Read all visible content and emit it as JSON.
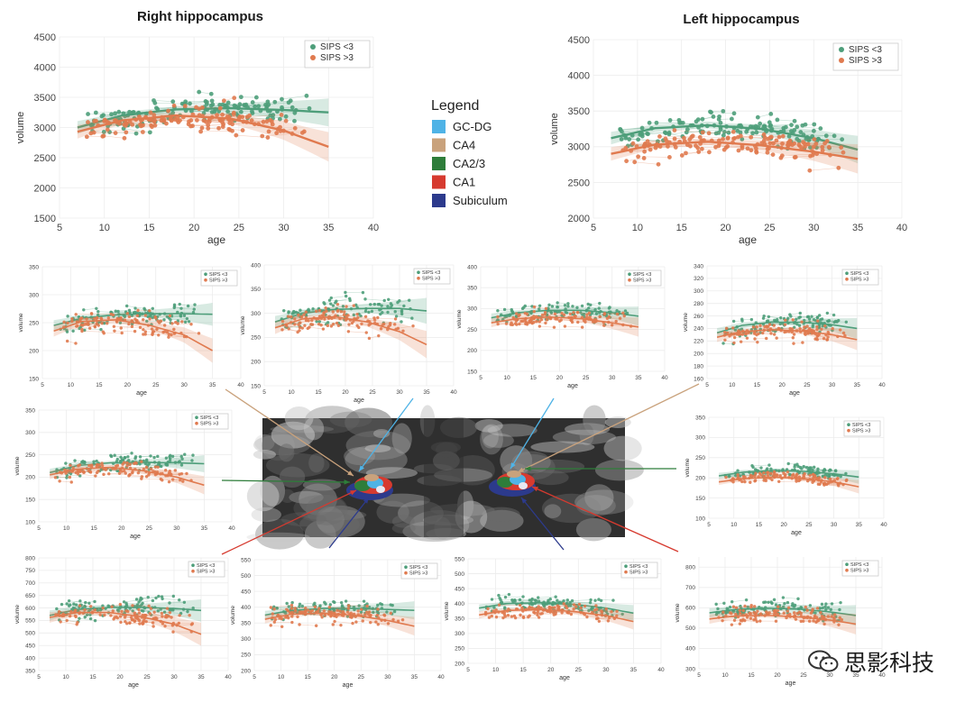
{
  "figure": {
    "watermark": "思影科技",
    "mri": {
      "palette": [
        "#2f2f2f",
        "#6a6a6a",
        "#9a9a9a",
        "#c8c8c8"
      ]
    },
    "legend": {
      "title": "Legend",
      "items": [
        {
          "label": "GC-DG",
          "color": "#4fb3e6"
        },
        {
          "label": "CA4",
          "color": "#c9a27c"
        },
        {
          "label": "CA2/3",
          "color": "#2e7d3a"
        },
        {
          "label": "CA1",
          "color": "#d63a2f"
        },
        {
          "label": "Subiculum",
          "color": "#2c3a8c"
        }
      ]
    },
    "series_colors": {
      "SIPS <3": "#4e9e7a",
      "SIPS >3": "#e07a4f"
    }
  },
  "chart_data": [
    {
      "id": "right-whole",
      "type": "scatter",
      "title": "Right hippocampus",
      "xlabel": "age",
      "ylabel": "volume",
      "xlim": [
        5,
        40
      ],
      "ylim": [
        1500,
        4500
      ],
      "xticks": [
        5,
        10,
        15,
        20,
        25,
        30,
        35,
        40
      ],
      "yticks": [
        1500,
        2000,
        2500,
        3000,
        3500,
        4000,
        4500
      ],
      "legend": "top-right",
      "series": [
        {
          "name": "SIPS <3",
          "fit_x": [
            7,
            12,
            18,
            24,
            30,
            35
          ],
          "fit_y": [
            3000,
            3200,
            3300,
            3320,
            3290,
            3250
          ],
          "center": 3200,
          "spread": 360
        },
        {
          "name": "SIPS >3",
          "fit_x": [
            7,
            12,
            18,
            24,
            30,
            35
          ],
          "fit_y": [
            2930,
            3120,
            3200,
            3150,
            2950,
            2680
          ],
          "center": 3100,
          "spread": 380
        }
      ]
    },
    {
      "id": "left-whole",
      "type": "scatter",
      "title": "Left hippocampus",
      "xlabel": "age",
      "ylabel": "volume",
      "xlim": [
        5,
        40
      ],
      "ylim": [
        2000,
        4500
      ],
      "xticks": [
        5,
        10,
        15,
        20,
        25,
        30,
        35,
        40
      ],
      "yticks": [
        2000,
        2500,
        3000,
        3500,
        4000,
        4500
      ],
      "legend": "top-right",
      "series": [
        {
          "name": "SIPS <3",
          "fit_x": [
            7,
            12,
            18,
            24,
            30,
            35
          ],
          "fit_y": [
            3120,
            3260,
            3300,
            3250,
            3120,
            2960
          ],
          "center": 3250,
          "spread": 300
        },
        {
          "name": "SIPS >3",
          "fit_x": [
            7,
            12,
            18,
            24,
            30,
            35
          ],
          "fit_y": [
            2900,
            3030,
            3070,
            3020,
            2930,
            2830
          ],
          "center": 3030,
          "spread": 320
        }
      ]
    },
    {
      "id": "r-ca4",
      "type": "scatter",
      "xlabel": "age",
      "ylabel": "volume",
      "xlim": [
        5,
        40
      ],
      "ylim": [
        150,
        350
      ],
      "xticks": [
        5,
        10,
        15,
        20,
        25,
        30,
        35,
        40
      ],
      "yticks": [
        150,
        200,
        250,
        300,
        350
      ],
      "legend": "top-right",
      "series": [
        {
          "name": "SIPS <3",
          "fit_x": [
            7,
            12,
            18,
            24,
            30,
            35
          ],
          "fit_y": [
            245,
            258,
            264,
            266,
            266,
            265
          ],
          "center": 258,
          "spread": 32
        },
        {
          "name": "SIPS >3",
          "fit_x": [
            7,
            12,
            18,
            24,
            30,
            35
          ],
          "fit_y": [
            235,
            252,
            255,
            245,
            228,
            200
          ],
          "center": 248,
          "spread": 34
        }
      ]
    },
    {
      "id": "r-gcdg",
      "type": "scatter",
      "xlabel": "age",
      "ylabel": "volume",
      "xlim": [
        5,
        40
      ],
      "ylim": [
        150,
        400
      ],
      "xticks": [
        5,
        10,
        15,
        20,
        25,
        30,
        35,
        40
      ],
      "yticks": [
        150,
        200,
        250,
        300,
        350,
        400
      ],
      "legend": "top-right",
      "series": [
        {
          "name": "SIPS <3",
          "fit_x": [
            7,
            12,
            18,
            24,
            30,
            35
          ],
          "fit_y": [
            282,
            300,
            308,
            310,
            310,
            305
          ],
          "center": 298,
          "spread": 42
        },
        {
          "name": "SIPS >3",
          "fit_x": [
            7,
            12,
            18,
            24,
            30,
            35
          ],
          "fit_y": [
            270,
            288,
            293,
            282,
            262,
            235
          ],
          "center": 283,
          "spread": 44
        }
      ]
    },
    {
      "id": "l-gcdg",
      "type": "scatter",
      "xlabel": "age",
      "ylabel": "volume",
      "xlim": [
        5,
        40
      ],
      "ylim": [
        150,
        400
      ],
      "xticks": [
        5,
        10,
        15,
        20,
        25,
        30,
        35,
        40
      ],
      "yticks": [
        150,
        200,
        250,
        300,
        350,
        400
      ],
      "legend": "top-right",
      "series": [
        {
          "name": "SIPS <3",
          "fit_x": [
            7,
            12,
            18,
            24,
            30,
            35
          ],
          "fit_y": [
            278,
            290,
            296,
            296,
            290,
            282
          ],
          "center": 290,
          "spread": 36
        },
        {
          "name": "SIPS >3",
          "fit_x": [
            7,
            12,
            18,
            24,
            30,
            35
          ],
          "fit_y": [
            266,
            276,
            280,
            276,
            266,
            256
          ],
          "center": 275,
          "spread": 36
        }
      ]
    },
    {
      "id": "l-ca4",
      "type": "scatter",
      "xlabel": "age",
      "ylabel": "volume",
      "xlim": [
        5,
        40
      ],
      "ylim": [
        160,
        340
      ],
      "xticks": [
        5,
        10,
        15,
        20,
        25,
        30,
        35,
        40
      ],
      "yticks": [
        160,
        180,
        200,
        220,
        240,
        260,
        280,
        300,
        320,
        340
      ],
      "legend": "top-right",
      "series": [
        {
          "name": "SIPS <3",
          "fit_x": [
            7,
            12,
            18,
            24,
            30,
            35
          ],
          "fit_y": [
            233,
            245,
            250,
            250,
            246,
            240
          ],
          "center": 245,
          "spread": 26
        },
        {
          "name": "SIPS >3",
          "fit_x": [
            7,
            12,
            18,
            24,
            30,
            35
          ],
          "fit_y": [
            226,
            235,
            238,
            236,
            230,
            222
          ],
          "center": 234,
          "spread": 26
        }
      ]
    },
    {
      "id": "r-ca23",
      "type": "scatter",
      "xlabel": "age",
      "ylabel": "volume",
      "xlim": [
        5,
        40
      ],
      "ylim": [
        100,
        350
      ],
      "xticks": [
        5,
        10,
        15,
        20,
        25,
        30,
        35,
        40
      ],
      "yticks": [
        100,
        150,
        200,
        250,
        300,
        350
      ],
      "legend": "top-right",
      "series": [
        {
          "name": "SIPS <3",
          "fit_x": [
            7,
            12,
            18,
            24,
            30,
            35
          ],
          "fit_y": [
            210,
            226,
            232,
            233,
            232,
            230
          ],
          "center": 225,
          "spread": 30
        },
        {
          "name": "SIPS >3",
          "fit_x": [
            7,
            12,
            18,
            24,
            30,
            35
          ],
          "fit_y": [
            205,
            218,
            222,
            214,
            200,
            182
          ],
          "center": 214,
          "spread": 32
        }
      ]
    },
    {
      "id": "l-ca23",
      "type": "scatter",
      "xlabel": "age",
      "ylabel": "volume",
      "xlim": [
        5,
        40
      ],
      "ylim": [
        100,
        350
      ],
      "xticks": [
        5,
        10,
        15,
        20,
        25,
        30,
        35,
        40
      ],
      "yticks": [
        100,
        150,
        200,
        250,
        300,
        350
      ],
      "legend": "top-right",
      "series": [
        {
          "name": "SIPS <3",
          "fit_x": [
            7,
            12,
            18,
            24,
            30,
            35
          ],
          "fit_y": [
            205,
            214,
            218,
            216,
            210,
            202
          ],
          "center": 212,
          "spread": 26
        },
        {
          "name": "SIPS >3",
          "fit_x": [
            7,
            12,
            18,
            24,
            30,
            35
          ],
          "fit_y": [
            190,
            198,
            202,
            198,
            190,
            178
          ],
          "center": 198,
          "spread": 26
        }
      ]
    },
    {
      "id": "r-ca1",
      "type": "scatter",
      "xlabel": "age",
      "ylabel": "volume",
      "xlim": [
        5,
        40
      ],
      "ylim": [
        350,
        800
      ],
      "xticks": [
        5,
        10,
        15,
        20,
        25,
        30,
        35,
        40
      ],
      "yticks": [
        350,
        400,
        450,
        500,
        550,
        600,
        650,
        700,
        750,
        800
      ],
      "legend": "top-right",
      "series": [
        {
          "name": "SIPS <3",
          "fit_x": [
            7,
            12,
            18,
            24,
            30,
            35
          ],
          "fit_y": [
            570,
            594,
            602,
            602,
            598,
            590
          ],
          "center": 590,
          "spread": 70
        },
        {
          "name": "SIPS >3",
          "fit_x": [
            7,
            12,
            18,
            24,
            30,
            35
          ],
          "fit_y": [
            562,
            582,
            582,
            565,
            535,
            495
          ],
          "center": 575,
          "spread": 72
        }
      ]
    },
    {
      "id": "r-sub",
      "type": "scatter",
      "xlabel": "age",
      "ylabel": "volume",
      "xlim": [
        5,
        40
      ],
      "ylim": [
        200,
        550
      ],
      "xticks": [
        5,
        10,
        15,
        20,
        25,
        30,
        35,
        40
      ],
      "yticks": [
        200,
        250,
        300,
        350,
        400,
        450,
        500,
        550
      ],
      "legend": "top-right",
      "series": [
        {
          "name": "SIPS <3",
          "fit_x": [
            7,
            12,
            18,
            24,
            30,
            35
          ],
          "fit_y": [
            375,
            390,
            396,
            396,
            393,
            390
          ],
          "center": 390,
          "spread": 45
        },
        {
          "name": "SIPS >3",
          "fit_x": [
            7,
            12,
            18,
            24,
            30,
            35
          ],
          "fit_y": [
            362,
            378,
            381,
            374,
            358,
            340
          ],
          "center": 374,
          "spread": 46
        }
      ]
    },
    {
      "id": "l-sub",
      "type": "scatter",
      "xlabel": "age",
      "ylabel": "volume",
      "xlim": [
        5,
        40
      ],
      "ylim": [
        200,
        550
      ],
      "xticks": [
        5,
        10,
        15,
        20,
        25,
        30,
        35,
        40
      ],
      "yticks": [
        200,
        250,
        300,
        350,
        400,
        450,
        500,
        550
      ],
      "legend": "top-right",
      "series": [
        {
          "name": "SIPS <3",
          "fit_x": [
            7,
            12,
            18,
            24,
            30,
            35
          ],
          "fit_y": [
            385,
            400,
            403,
            398,
            385,
            368
          ],
          "center": 395,
          "spread": 42
        },
        {
          "name": "SIPS >3",
          "fit_x": [
            7,
            12,
            18,
            24,
            30,
            35
          ],
          "fit_y": [
            362,
            377,
            380,
            374,
            360,
            340
          ],
          "center": 372,
          "spread": 42
        }
      ]
    },
    {
      "id": "l-ca1",
      "type": "scatter",
      "xlabel": "age",
      "ylabel": "volume",
      "xlim": [
        5,
        40
      ],
      "ylim": [
        300,
        850
      ],
      "xticks": [
        5,
        10,
        15,
        20,
        25,
        30,
        35,
        40
      ],
      "yticks": [
        300,
        400,
        500,
        600,
        700,
        800
      ],
      "legend": "top-right",
      "series": [
        {
          "name": "SIPS <3",
          "fit_x": [
            7,
            12,
            18,
            24,
            30,
            35
          ],
          "fit_y": [
            575,
            592,
            598,
            594,
            580,
            562
          ],
          "center": 590,
          "spread": 80
        },
        {
          "name": "SIPS >3",
          "fit_x": [
            7,
            12,
            18,
            24,
            30,
            35
          ],
          "fit_y": [
            545,
            560,
            563,
            555,
            540,
            520
          ],
          "center": 558,
          "spread": 80
        }
      ]
    }
  ]
}
